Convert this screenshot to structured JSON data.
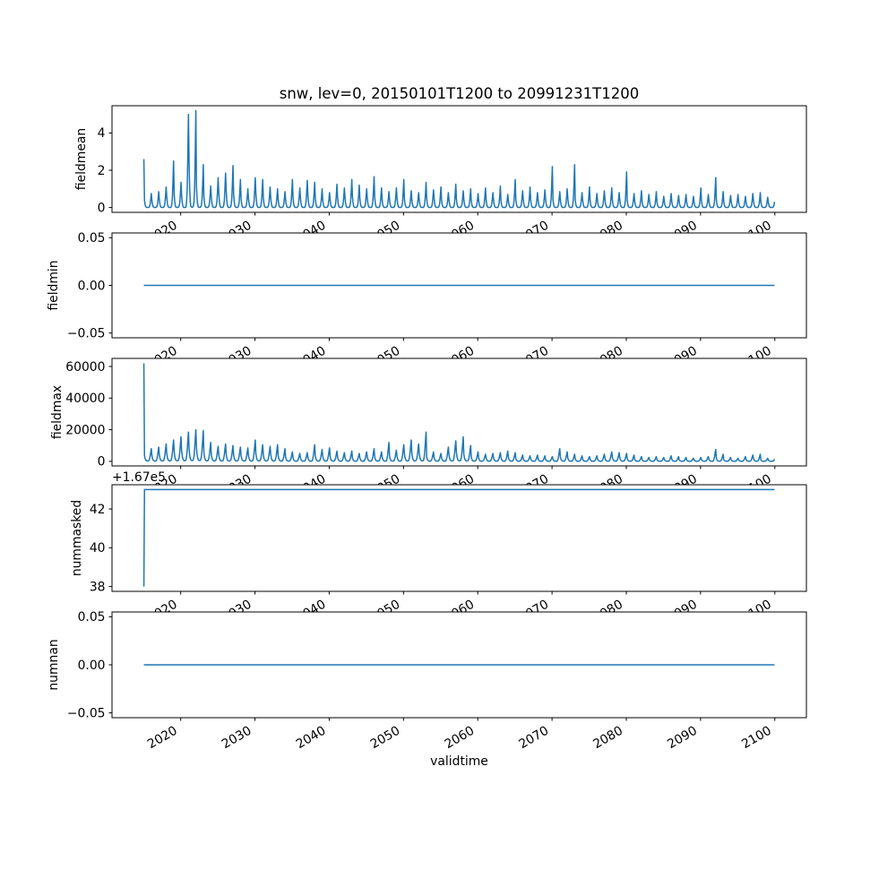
{
  "title": "snw, lev=0, 20150101T1200 to 20991231T1200",
  "xlabel": "validtime",
  "line_color": "#1f77b4",
  "x_axis": {
    "lim": [
      2010.75,
      2104.25
    ],
    "tick_values": [
      2020,
      2030,
      2040,
      2050,
      2060,
      2070,
      2080,
      2090,
      2100
    ],
    "tick_labels": [
      "2020",
      "2030",
      "2040",
      "2050",
      "2060",
      "2070",
      "2080",
      "2090",
      "2100"
    ],
    "data_window": [
      2015.042,
      2099.958
    ]
  },
  "chart_data": [
    {
      "type": "line",
      "name": "fieldmean",
      "ylabel": "fieldmean",
      "ylim": [
        -0.26,
        5.46
      ],
      "ytick_values": [
        0,
        2,
        4
      ],
      "ytick_labels": [
        "0",
        "2",
        "4"
      ],
      "series": {
        "kind": "seasonal",
        "start_year": 2015,
        "annual_peaks": [
          2.6,
          0.75,
          0.85,
          1.1,
          2.5,
          1.35,
          5.0,
          5.2,
          2.3,
          1.15,
          1.6,
          1.85,
          2.25,
          1.5,
          1.0,
          1.6,
          1.5,
          1.1,
          1.0,
          0.85,
          1.5,
          1.05,
          1.45,
          1.35,
          1.0,
          0.8,
          1.25,
          1.05,
          1.5,
          1.2,
          1.0,
          1.65,
          1.05,
          0.85,
          1.05,
          1.5,
          0.9,
          0.8,
          1.35,
          0.95,
          1.1,
          0.8,
          1.25,
          0.9,
          1.0,
          0.75,
          1.05,
          0.8,
          1.15,
          0.7,
          1.5,
          0.9,
          1.1,
          0.8,
          0.95,
          2.2,
          0.85,
          1.0,
          2.3,
          0.8,
          1.1,
          0.75,
          0.9,
          1.05,
          0.8,
          1.9,
          0.75,
          0.9,
          0.7,
          0.85,
          0.6,
          0.75,
          0.65,
          0.7,
          0.6,
          1.05,
          0.7,
          1.6,
          0.85,
          0.65,
          0.7,
          0.6,
          0.75,
          0.8,
          0.55
        ],
        "monthly_profile": [
          1.0,
          0.5,
          0.2,
          0.06,
          0.012,
          0.004,
          0.003,
          0.004,
          0.015,
          0.06,
          0.2,
          0.55
        ]
      }
    },
    {
      "type": "line",
      "name": "fieldmin",
      "ylabel": "fieldmin",
      "ylim": [
        -0.055,
        0.055
      ],
      "ytick_values": [
        -0.05,
        0.0,
        0.05
      ],
      "ytick_labels": [
        "−0.05",
        "0.00",
        "0.05"
      ],
      "series": {
        "kind": "flat",
        "value": 0.0
      }
    },
    {
      "type": "line",
      "name": "fieldmax",
      "ylabel": "fieldmax",
      "ylim": [
        -2890,
        65090
      ],
      "ytick_values": [
        0,
        20000,
        40000,
        60000
      ],
      "ytick_labels": [
        "0",
        "20000",
        "40000",
        "60000"
      ],
      "series": {
        "kind": "seasonal",
        "start_year": 2015,
        "annual_peaks": [
          62000,
          8000,
          9000,
          11000,
          13500,
          15500,
          18500,
          20000,
          19500,
          12000,
          9500,
          11000,
          10000,
          9000,
          8500,
          13500,
          10500,
          9500,
          10500,
          8000,
          6000,
          5000,
          5500,
          10500,
          7500,
          8500,
          6500,
          5500,
          6500,
          5000,
          6000,
          8000,
          6000,
          12000,
          7000,
          10500,
          13500,
          11000,
          18500,
          6000,
          5000,
          9000,
          13000,
          15500,
          10000,
          6000,
          4500,
          5000,
          5500,
          6500,
          5500,
          4000,
          3500,
          4000,
          3500,
          3000,
          8000,
          6000,
          4500,
          3500,
          3000,
          3500,
          4500,
          6000,
          5500,
          5000,
          4000,
          3000,
          2500,
          3000,
          2500,
          3500,
          3000,
          2500,
          2000,
          2500,
          3000,
          7500,
          4500,
          2500,
          2000,
          3000,
          4000,
          4500,
          2000
        ],
        "monthly_profile": [
          1.0,
          0.45,
          0.22,
          0.1,
          0.05,
          0.03,
          0.025,
          0.03,
          0.06,
          0.16,
          0.38,
          0.7
        ]
      }
    },
    {
      "type": "line",
      "name": "nummasked",
      "ylabel": "nummasked",
      "offset_text": "+1.67e5",
      "ylim": [
        167037.75,
        167043.25
      ],
      "ytick_values": [
        167038,
        167040,
        167042
      ],
      "ytick_labels": [
        "38",
        "40",
        "42"
      ],
      "series": {
        "kind": "points",
        "points": [
          [
            2015.042,
            167038
          ],
          [
            2015.125,
            167043
          ],
          [
            2099.958,
            167043
          ]
        ]
      }
    },
    {
      "type": "line",
      "name": "numnan",
      "ylabel": "numnan",
      "ylim": [
        -0.055,
        0.055
      ],
      "ytick_values": [
        -0.05,
        0.0,
        0.05
      ],
      "ytick_labels": [
        "−0.05",
        "0.00",
        "0.05"
      ],
      "series": {
        "kind": "flat",
        "value": 0.0
      }
    }
  ]
}
